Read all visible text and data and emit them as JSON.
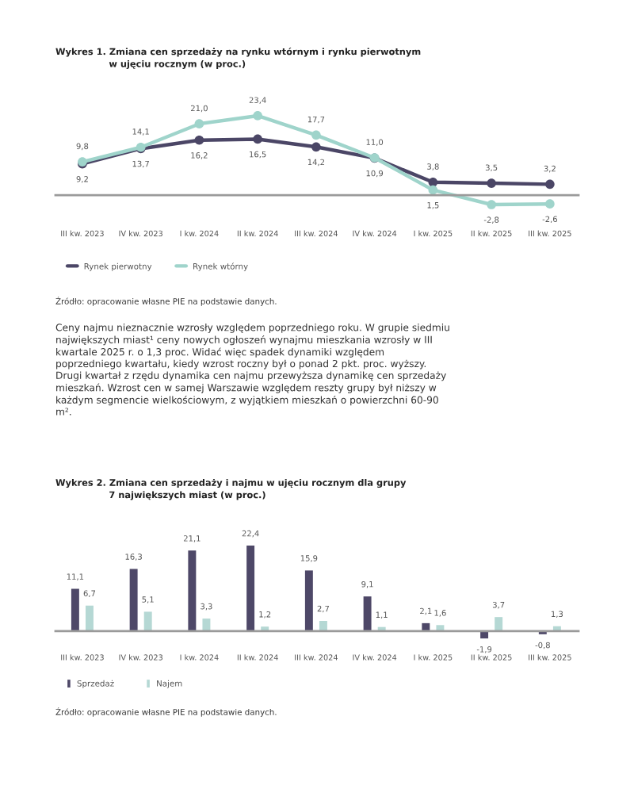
{
  "chart_data": [
    {
      "type": "line",
      "title": "Wykres 1. Zmiana cen sprzedaży na rynku wtórnym i rynku pierwotnym\nw ujęciu rocznym (w proc.)",
      "categories": [
        "III kw. 2023",
        "IV kw. 2023",
        "I kw. 2024",
        "II kw. 2024",
        "III kw. 2024",
        "IV kw. 2024",
        "I kw. 2025",
        "II kw. 2025",
        "III kw. 2025"
      ],
      "series": [
        {
          "name": "Rynek pierwotny",
          "color": "#4b4666",
          "values": [
            9.2,
            13.7,
            16.2,
            16.5,
            14.2,
            10.9,
            3.8,
            3.5,
            3.2
          ],
          "value_labels": [
            "9,2",
            "13,7",
            "16,2",
            "16,5",
            "14,2",
            "10,9",
            "3,8",
            "3,5",
            "3,2"
          ]
        },
        {
          "name": "Rynek wtórny",
          "color": "#9fd4cb",
          "values": [
            9.8,
            14.1,
            21.0,
            23.4,
            17.7,
            11.0,
            1.5,
            -2.8,
            -2.6
          ],
          "value_labels": [
            "9,8",
            "14,1",
            "21,0",
            "23,4",
            "17,7",
            "11,0",
            "1,5",
            "-2,8",
            "-2,6"
          ]
        }
      ],
      "marker": "circle",
      "legend": "bottom left",
      "annotations": [
        "Źródło: opracowanie własne PIE na podstawie danych.",
        "Ceny najmu nieznacznie wzrosły względem poprzedniego roku. W grupie siedmiu największych miast¹ ceny nowych ogłoszeń wynajmu mieszkania wzrosły w III kwartale 2025 r. o 1,3 proc. Widać więc spadek dynamiki względem poprzedniego kwartału, kiedy wzrost roczny był o ponad 2 pkt. proc. wyższy. Drugi kwartał z rzędu dynamika cen najmu przewyższa dynamikę cen sprzedaży mieszkań. Wzrost cen w samej Warszawie względem reszty grupy był niższy w każdym segmencie wielkościowym, z wyjątkiem mieszkań o powierzchni 60-90 m²."
      ]
    },
    {
      "type": "bar",
      "title": "Wykres 2. Zmiana cen sprzedaży i najmu w ujęciu rocznym dla grupy\n7 największych miast (w proc.)",
      "categories": [
        "III kw. 2023",
        "IV kw. 2023",
        "I kw. 2024",
        "II kw. 2024",
        "III kw. 2024",
        "IV kw. 2024",
        "I kw. 2025",
        "II kw. 2025",
        "III kw. 2025"
      ],
      "series": [
        {
          "name": "Sprzedaż",
          "color": "#4e4868",
          "values": [
            11.1,
            16.3,
            21.1,
            22.4,
            15.9,
            9.1,
            2.1,
            -1.9,
            -0.8
          ],
          "value_labels": [
            "11,1",
            "16,3",
            "21,1",
            "22,4",
            "15,9",
            "9,1",
            "2,1",
            "-1,9",
            "-0,8"
          ]
        },
        {
          "name": "Najem",
          "color": "#b5d8d4",
          "values": [
            6.7,
            5.1,
            3.3,
            1.2,
            2.7,
            1.1,
            1.6,
            3.7,
            1.3
          ],
          "value_labels": [
            "6,7",
            "5,1",
            "3,3",
            "1,2",
            "2,7",
            "1,1",
            "1,6",
            "3,7",
            "1,3"
          ]
        }
      ],
      "legend": "bottom left",
      "annotations": [
        "Źródło: opracowanie własne PIE na podstawie danych."
      ]
    }
  ]
}
